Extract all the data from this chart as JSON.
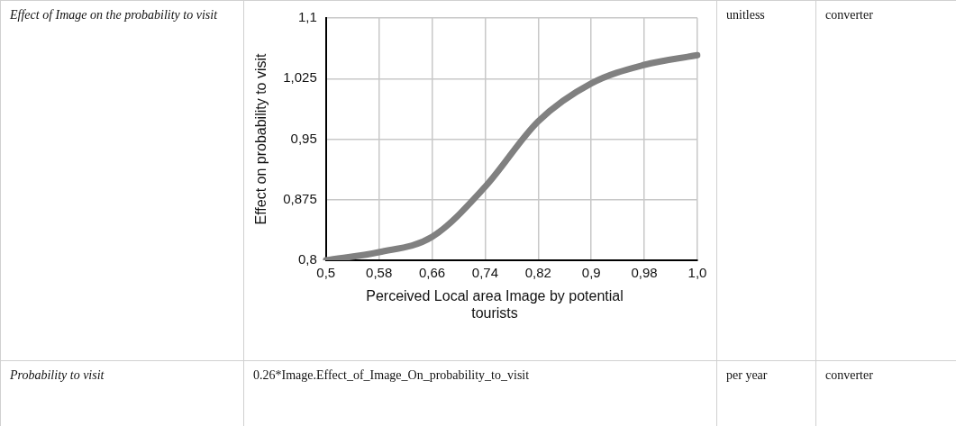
{
  "chart_data": {
    "type": "line",
    "xlabel": "Perceived Local area Image by potential tourists",
    "ylabel": "Effect on probability to visit",
    "categories": [
      "0,5",
      "0,58",
      "0,66",
      "0,74",
      "0,82",
      "0,9",
      "0,98",
      "1,0"
    ],
    "series": [
      {
        "color": "#808080",
        "values": [
          0.8,
          0.81,
          0.829,
          0.891,
          0.972,
          1.019,
          1.042,
          1.054
        ]
      }
    ],
    "ylim": [
      0.8,
      1.1
    ],
    "yticks": [
      {
        "value": 0.8,
        "label": "0,8"
      },
      {
        "value": 0.875,
        "label": "0,875"
      },
      {
        "value": 0.95,
        "label": "0,95"
      },
      {
        "value": 1.025,
        "label": "1,025"
      },
      {
        "value": 1.1,
        "label": "1,1"
      }
    ],
    "grid": true,
    "legend": false,
    "marker": "none",
    "line_style": "solid",
    "annotations": [
      "Effect of Image on the probability to visit",
      "unitless",
      "converter",
      "Probability to visit",
      "0.26*Image.Effect_of_Image_On_probability_to_visit",
      "per year",
      "converter"
    ]
  }
}
